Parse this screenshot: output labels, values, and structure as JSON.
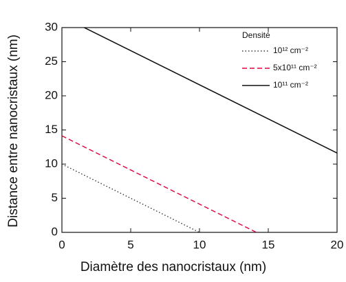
{
  "chart_data": {
    "type": "line",
    "xlabel": "Diamètre des nanocristaux (nm)",
    "ylabel": "Distance entre nanocristaux (nm)",
    "legend_title": "Densité",
    "legend": "upper right",
    "xlim": [
      0,
      20
    ],
    "xticks": [
      0,
      5,
      10,
      15,
      20
    ],
    "ylim": [
      0,
      30
    ],
    "yticks": [
      0,
      5,
      10,
      15,
      20,
      25,
      30
    ],
    "series": [
      {
        "name": "10¹² cm⁻²",
        "color": "#333333",
        "linestyle": "dotted",
        "x": [
          0,
          10
        ],
        "values": [
          10,
          0
        ]
      },
      {
        "name": "5x10¹¹ cm⁻²",
        "color": "#e0003a",
        "linestyle": "dashed",
        "x": [
          0,
          14.14
        ],
        "values": [
          14.14,
          0
        ]
      },
      {
        "name": "10¹¹ cm⁻²",
        "color": "#111111",
        "linestyle": "solid",
        "x": [
          1.62,
          20
        ],
        "values": [
          30,
          11.62
        ]
      }
    ]
  }
}
